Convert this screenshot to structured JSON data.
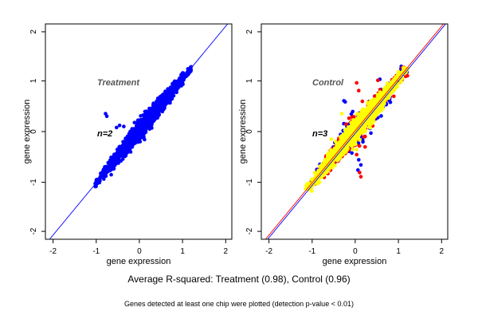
{
  "captions": {
    "summary": "Average R-squared: Treatment (0.98), Control (0.96)",
    "note": "Genes detected at least one chip were plotted (detection p-value < 0.01)"
  },
  "chart_data": [
    {
      "type": "scatter",
      "title": "Treatment",
      "annotation": "n=2",
      "xlabel": "gene expression",
      "ylabel": "gene expression",
      "xlim": [
        -2.2,
        2.2
      ],
      "ylim": [
        -2.1,
        2.1
      ],
      "xticks": [
        "-2",
        "-1",
        "0",
        "1",
        "2"
      ],
      "yticks": [
        "-2",
        "-1",
        "0",
        "1",
        "2"
      ],
      "grid": false,
      "reference_lines": [
        {
          "slope": 1,
          "intercept": 0,
          "color": "#0000ff"
        }
      ],
      "series": [
        {
          "color": "#0000ff",
          "cloud": {
            "from": -1.0,
            "to": 1.2,
            "spread": 0.09,
            "count": 1600
          },
          "outliers": [
            [
              -0.78,
              0.35
            ],
            [
              -0.75,
              0.3
            ],
            [
              -0.45,
              0.12
            ],
            [
              -0.52,
              0.08
            ],
            [
              -0.35,
              0.1
            ],
            [
              0.35,
              0.55
            ],
            [
              -0.15,
              -0.3
            ]
          ]
        }
      ]
    },
    {
      "type": "scatter",
      "title": "Control",
      "annotation": "n=3",
      "xlabel": "gene expression",
      "ylabel": "gene expression",
      "xlim": [
        -2.2,
        2.2
      ],
      "ylim": [
        -2.1,
        2.1
      ],
      "xticks": [
        "-2",
        "-1",
        "0",
        "1",
        "2"
      ],
      "yticks": [
        "-2",
        "-1",
        "0",
        "1",
        "2"
      ],
      "grid": false,
      "reference_lines": [
        {
          "slope": 1,
          "intercept": 0,
          "color": "#ff0000"
        },
        {
          "slope": 1,
          "intercept": -0.05,
          "color": "#0000ff"
        }
      ],
      "series": [
        {
          "color": "#0000ff",
          "cloud": {
            "from": -1.0,
            "to": 1.2,
            "spread": 0.16,
            "count": 350
          },
          "outliers": [
            [
              -0.25,
              0.6
            ],
            [
              -0.22,
              0.58
            ],
            [
              0.05,
              0.25
            ],
            [
              0.1,
              -0.55
            ],
            [
              0.15,
              -0.65
            ],
            [
              0.08,
              -0.75
            ],
            [
              0.2,
              -0.2
            ],
            [
              0.0,
              -0.25
            ],
            [
              0.6,
              1.02
            ]
          ]
        },
        {
          "color": "#ff0000",
          "cloud": {
            "from": -1.0,
            "to": 1.2,
            "spread": 0.15,
            "count": 450
          },
          "outliers": [
            [
              0.05,
              0.95
            ],
            [
              0.1,
              0.8
            ],
            [
              0.05,
              -0.45
            ],
            [
              0.12,
              -0.8
            ],
            [
              0.15,
              -0.88
            ],
            [
              0.55,
              1.0
            ],
            [
              0.75,
              0.85
            ],
            [
              -0.6,
              -0.5
            ],
            [
              0.25,
              -0.3
            ],
            [
              0.5,
              0.65
            ]
          ]
        },
        {
          "color": "#ffff00",
          "cloud": {
            "from": -1.1,
            "to": 1.2,
            "spread": 0.11,
            "count": 1600
          },
          "outliers": [
            [
              -0.55,
              -0.15
            ],
            [
              0.4,
              0.15
            ],
            [
              0.05,
              -0.35
            ],
            [
              -0.3,
              0.35
            ]
          ]
        }
      ]
    }
  ]
}
